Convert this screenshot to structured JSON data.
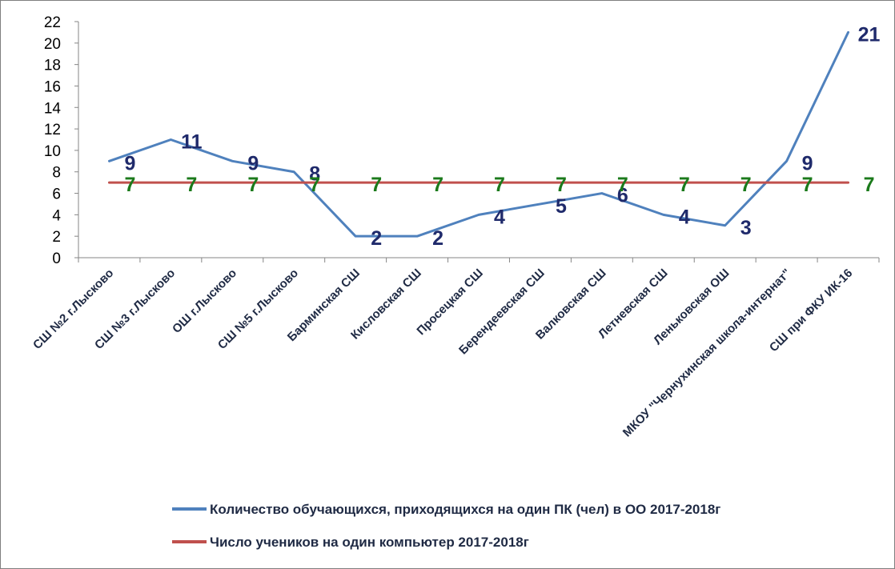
{
  "chart_data": {
    "type": "line",
    "categories": [
      "СШ №2 г.Лысково",
      "СШ №3 г.Лысково",
      "ОШ г.Лысково",
      "СШ №5 г.Лысково",
      "Барминская СШ",
      "Кисловская СШ",
      "Просецкая СШ",
      "Берендеевская СШ",
      "Валковская СШ",
      "Летневская СШ",
      "Леньковская ОШ",
      "МКОУ \"Чернухинская школа-интернат\"",
      "СШ при ФКУ ИК-16"
    ],
    "series": [
      {
        "name": "Количество обучающихся, приходящихся на один ПК (чел) в ОО 2017-2018г",
        "values": [
          9,
          11,
          9,
          8,
          2,
          2,
          4,
          5,
          6,
          4,
          3,
          9,
          21
        ],
        "color": "#4f81bd",
        "label_color": "#1f2a6b",
        "labels": [
          "9",
          "11",
          "9",
          "8",
          "2",
          "2",
          "4",
          "5",
          "6",
          "4",
          "3",
          "9",
          "21"
        ]
      },
      {
        "name": "Число учеников на один компьютер 2017-2018г",
        "values": [
          7,
          7,
          7,
          7,
          7,
          7,
          7,
          7,
          7,
          7,
          7,
          7,
          7
        ],
        "color": "#c0504d",
        "label_color": "#1b7a1b",
        "labels": [
          "7",
          "7",
          "7",
          "7",
          "7",
          "7",
          "7",
          "7",
          "7",
          "7",
          "7",
          "7",
          "7"
        ]
      }
    ],
    "ylim": [
      0,
      22
    ],
    "yticks": [
      "0",
      "2",
      "4",
      "6",
      "8",
      "10",
      "12",
      "14",
      "16",
      "18",
      "20",
      "22"
    ],
    "title": "",
    "xlabel": "",
    "ylabel": "",
    "grid": false,
    "legend_position": "bottom"
  }
}
